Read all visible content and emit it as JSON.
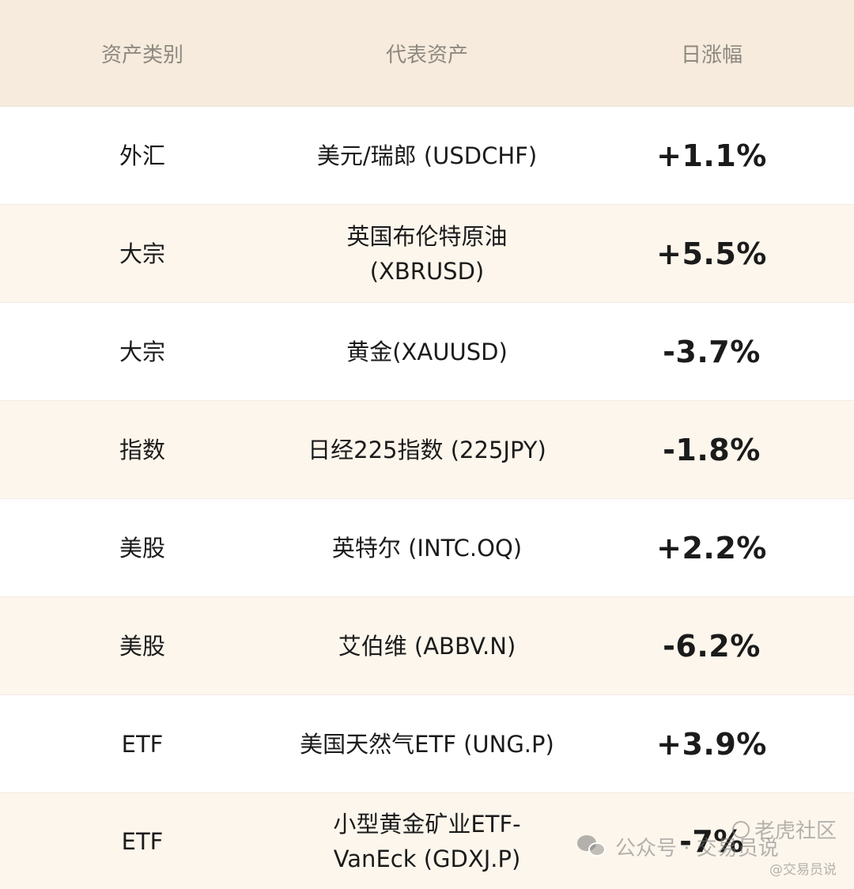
{
  "table": {
    "headers": [
      "资产类别",
      "代表资产",
      "日涨幅"
    ],
    "rows": [
      {
        "category": "外汇",
        "asset": [
          "美元/瑞郎 (USDCHF)"
        ],
        "change": "+1.1%"
      },
      {
        "category": "大宗",
        "asset": [
          "英国布伦特原油",
          "(XBRUSD)"
        ],
        "change": "+5.5%"
      },
      {
        "category": "大宗",
        "asset": [
          "黄金(XAUUSD)"
        ],
        "change": "-3.7%"
      },
      {
        "category": "指数",
        "asset": [
          "日经225指数 (225JPY)"
        ],
        "change": "-1.8%"
      },
      {
        "category": "美股",
        "asset": [
          "英特尔 (INTC.OQ)"
        ],
        "change": "+2.2%"
      },
      {
        "category": "美股",
        "asset": [
          "艾伯维 (ABBV.N)"
        ],
        "change": "-6.2%"
      },
      {
        "category": "ETF",
        "asset": [
          "美国天然气ETF (UNG.P)"
        ],
        "change": "+3.9%"
      },
      {
        "category": "ETF",
        "asset": [
          "小型黄金矿业ETF-",
          "VanEck (GDXJ.P)"
        ],
        "change": "-7%"
      }
    ]
  },
  "watermark": {
    "community": "老虎社区",
    "account": "公众号 · 交易员说",
    "handle": "@交易员说"
  },
  "colors": {
    "header_bg": "#f6ebdc",
    "row_alt_bg": "#fdf6ec",
    "text": "#1b1b1b",
    "header_text": "#8e8880"
  }
}
